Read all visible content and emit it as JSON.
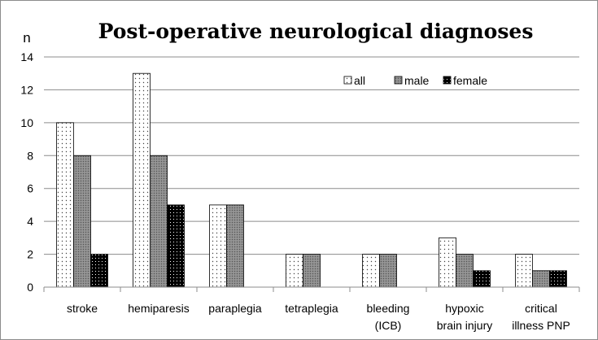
{
  "chart_data": {
    "type": "bar",
    "title": "Post-operative neurological diagnoses",
    "ylabel": "n",
    "ylim": [
      0,
      14
    ],
    "yticks": [
      0,
      2,
      4,
      6,
      8,
      10,
      12,
      14
    ],
    "grid": true,
    "legend_position": "top-right",
    "categories": [
      [
        "stroke"
      ],
      [
        "hemiparesis"
      ],
      [
        "paraplegia"
      ],
      [
        "tetraplegia"
      ],
      [
        "bleeding",
        "(ICB)"
      ],
      [
        "hypoxic",
        "brain injury"
      ],
      [
        "critical",
        "illness PNP"
      ]
    ],
    "series": [
      {
        "name": "all",
        "pattern": "dots",
        "values": [
          10,
          13,
          5,
          2,
          2,
          3,
          2
        ]
      },
      {
        "name": "male",
        "pattern": "gray",
        "values": [
          8,
          8,
          5,
          2,
          2,
          2,
          1
        ]
      },
      {
        "name": "female",
        "pattern": "black",
        "values": [
          2,
          5,
          0,
          0,
          0,
          1,
          1
        ]
      }
    ],
    "colors": {
      "grid": "#8c8c8c",
      "axis": "#8c8c8c",
      "bar_border": "#000000"
    }
  }
}
